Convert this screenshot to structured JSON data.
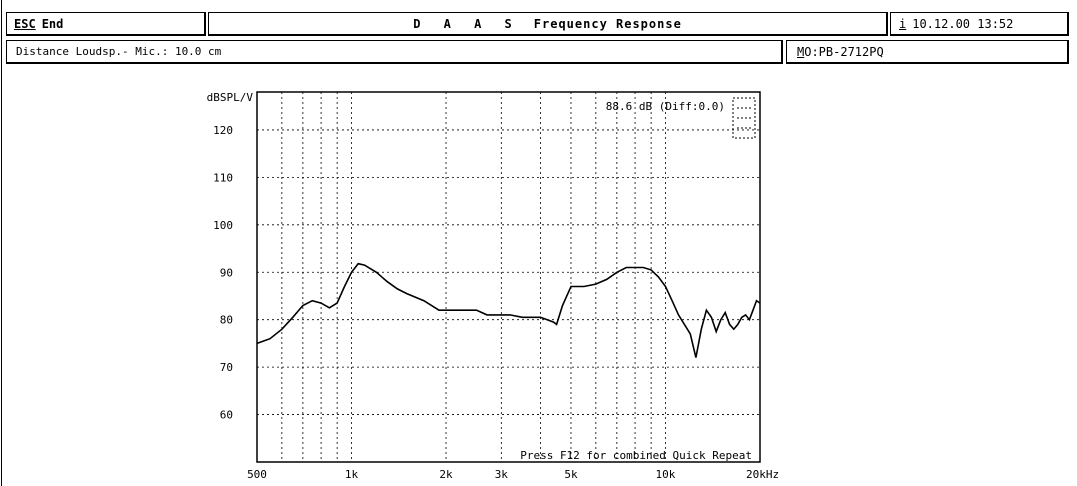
{
  "header": {
    "esc_key": "ESC",
    "esc_label": "End",
    "title_prefix": "D A A S",
    "title_main": "Frequency Response",
    "info_key": "i",
    "datetime": "10.12.00 13:52"
  },
  "subheader": {
    "distance": "Distance Loudsp.- Mic.: 10.0 cm",
    "model_key": "M",
    "model_value": "O:PB-2712PQ"
  },
  "chart_data": {
    "type": "line",
    "ylabel": "dBSPL/V",
    "xunit": "Hz",
    "x_scale": "log",
    "xlim": [
      500,
      20000
    ],
    "ylim": [
      50,
      128
    ],
    "grid": true,
    "x_ticks": [
      {
        "value": 500,
        "label": "500"
      },
      {
        "value": 1000,
        "label": "1k"
      },
      {
        "value": 2000,
        "label": "2k"
      },
      {
        "value": 3000,
        "label": "3k"
      },
      {
        "value": 5000,
        "label": "5k"
      },
      {
        "value": 10000,
        "label": "10k"
      },
      {
        "value": 20000,
        "label": "20kHz"
      }
    ],
    "y_ticks": [
      60,
      70,
      80,
      90,
      100,
      110,
      120
    ],
    "annotation_level": "88.6 dB (Diff:0.0)",
    "footer_hint": "Press F12 for combined Quick Repeat",
    "series": [
      {
        "x": [
          500,
          550,
          600,
          650,
          700,
          750,
          800,
          850,
          900,
          950,
          1000,
          1050,
          1100,
          1200,
          1300,
          1400,
          1500,
          1700,
          1900,
          2000,
          2200,
          2500,
          2700,
          3000,
          3200,
          3500,
          3800,
          4000,
          4200,
          4400,
          4500,
          4700,
          5000,
          5500,
          6000,
          6500,
          7000,
          7500,
          8000,
          8500,
          9000,
          9500,
          10000,
          10500,
          11000,
          12000,
          12500,
          13000,
          13500,
          14000,
          14500,
          15000,
          15500,
          16000,
          16500,
          17000,
          17500,
          18000,
          18500,
          19000,
          19500,
          20000
        ],
        "y": [
          75,
          76,
          78,
          80.5,
          83,
          84,
          83.5,
          82.5,
          83.5,
          87,
          90,
          91.8,
          91.5,
          90,
          88,
          86.5,
          85.5,
          84,
          82,
          82,
          82,
          82,
          81,
          81,
          81,
          80.5,
          80.5,
          80.5,
          80,
          79.5,
          79,
          83,
          87,
          87,
          87.5,
          88.5,
          90,
          91,
          91,
          91,
          90.5,
          89,
          87,
          84,
          81,
          77,
          72,
          78,
          82,
          80.5,
          77.5,
          80,
          81.5,
          79,
          78,
          79,
          80.5,
          81,
          80,
          82,
          84,
          83.5
        ]
      }
    ]
  }
}
